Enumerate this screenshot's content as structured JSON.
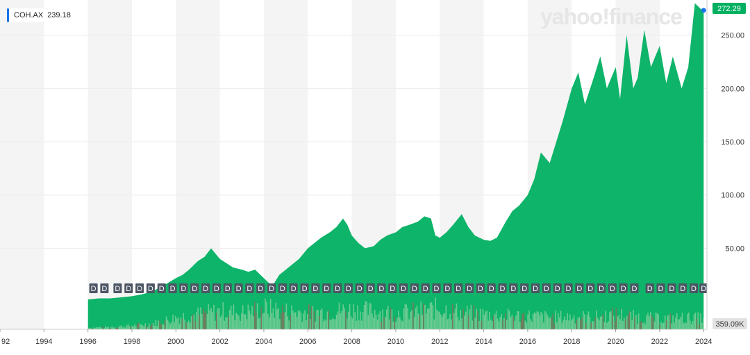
{
  "chart_data": {
    "type": "area",
    "symbol": "COH.AX",
    "legend_value": "239.18",
    "watermark": "yahoo!finance",
    "last_price_label": "272.29",
    "volume_label": "359.09K",
    "x_tick_labels": [
      "92",
      "1994",
      "1996",
      "1998",
      "2000",
      "2002",
      "2004",
      "2006",
      "2008",
      "2010",
      "2012",
      "2014",
      "2016",
      "2018",
      "2020",
      "2022",
      "2024"
    ],
    "y_tick_labels": [
      "50.00",
      "100.00",
      "150.00",
      "200.00",
      "250.00"
    ],
    "y_ticks": [
      50,
      100,
      150,
      200,
      250
    ],
    "ylim": [
      -26,
      283
    ],
    "xlim": [
      1992.0,
      2024.15
    ],
    "grid": true,
    "price_series": {
      "name": "COH.AX",
      "x": [
        1996.0,
        1996.5,
        1997.0,
        1997.5,
        1998.0,
        1998.5,
        1999.0,
        1999.3,
        1999.6,
        2000.0,
        2000.3,
        2000.6,
        2001.0,
        2001.3,
        2001.6,
        2001.8,
        2002.0,
        2002.3,
        2002.6,
        2003.0,
        2003.3,
        2003.6,
        2004.0,
        2004.2,
        2004.4,
        2004.7,
        2005.0,
        2005.3,
        2005.6,
        2006.0,
        2006.3,
        2006.6,
        2007.0,
        2007.3,
        2007.6,
        2007.8,
        2008.0,
        2008.3,
        2008.6,
        2009.0,
        2009.3,
        2009.6,
        2010.0,
        2010.3,
        2010.6,
        2011.0,
        2011.3,
        2011.6,
        2011.8,
        2012.0,
        2012.3,
        2012.6,
        2013.0,
        2013.3,
        2013.6,
        2014.0,
        2014.3,
        2014.6,
        2015.0,
        2015.3,
        2015.6,
        2016.0,
        2016.3,
        2016.6,
        2017.0,
        2017.3,
        2017.6,
        2018.0,
        2018.3,
        2018.6,
        2019.0,
        2019.3,
        2019.6,
        2020.0,
        2020.2,
        2020.5,
        2020.8,
        2021.0,
        2021.3,
        2021.6,
        2022.0,
        2022.3,
        2022.6,
        2023.0,
        2023.3,
        2023.6,
        2024.0
      ],
      "y": [
        2,
        3,
        3,
        4,
        5,
        7,
        10,
        14,
        17,
        22,
        25,
        30,
        38,
        42,
        50,
        45,
        40,
        36,
        32,
        30,
        28,
        30,
        22,
        18,
        15,
        25,
        30,
        35,
        40,
        50,
        55,
        60,
        65,
        70,
        78,
        72,
        62,
        55,
        50,
        52,
        58,
        62,
        65,
        70,
        72,
        75,
        80,
        78,
        62,
        60,
        65,
        72,
        82,
        70,
        62,
        58,
        57,
        60,
        75,
        85,
        90,
        100,
        115,
        140,
        130,
        150,
        170,
        200,
        215,
        185,
        210,
        230,
        200,
        220,
        190,
        250,
        200,
        210,
        255,
        220,
        240,
        205,
        230,
        200,
        220,
        280,
        272
      ]
    },
    "volume_series": {
      "name": "Volume",
      "x": [
        1996.0,
        1997.0,
        1998.0,
        1999.0,
        2000.0,
        2001.0,
        2002.0,
        2003.0,
        2004.0,
        2005.0,
        2006.0,
        2007.0,
        2008.0,
        2009.0,
        2010.0,
        2011.0,
        2012.0,
        2013.0,
        2014.0,
        2015.0,
        2016.0,
        2017.0,
        2018.0,
        2019.0,
        2020.0,
        2021.0,
        2022.0,
        2023.0,
        2024.0
      ],
      "y": [
        0.05,
        0.08,
        0.12,
        0.2,
        0.4,
        0.5,
        0.6,
        0.55,
        0.7,
        0.6,
        0.55,
        0.6,
        0.65,
        0.6,
        0.55,
        0.6,
        0.7,
        0.55,
        0.5,
        0.45,
        0.45,
        0.4,
        0.42,
        0.4,
        0.5,
        0.4,
        0.35,
        0.38,
        0.36
      ]
    },
    "dividend_markers": {
      "label": "D",
      "x": [
        1996.25,
        1996.75,
        1997.35,
        1997.85,
        1998.35,
        1998.85,
        1999.35,
        1999.85,
        2000.35,
        2000.85,
        2001.35,
        2001.85,
        2002.35,
        2002.85,
        2003.35,
        2003.85,
        2004.35,
        2004.85,
        2005.35,
        2005.85,
        2006.35,
        2006.85,
        2007.35,
        2007.85,
        2008.35,
        2008.85,
        2009.35,
        2009.85,
        2010.35,
        2010.85,
        2011.35,
        2011.85,
        2012.35,
        2012.85,
        2013.35,
        2013.85,
        2014.35,
        2014.85,
        2015.35,
        2015.85,
        2016.35,
        2016.85,
        2017.35,
        2017.85,
        2018.35,
        2018.85,
        2019.35,
        2019.85,
        2020.35,
        2020.85,
        2021.55,
        2022.05,
        2022.55,
        2023.05,
        2023.55,
        2024.0
      ]
    },
    "colors": {
      "area": "#00b061",
      "volume": "#7fcf9a",
      "volume_dark": "#8a6f5a",
      "band": "#f4f4f4",
      "axis_text": "#333333",
      "marker_bg": "#4b5563",
      "price_tag": "#00b061",
      "dot": "#1a73e8"
    }
  }
}
